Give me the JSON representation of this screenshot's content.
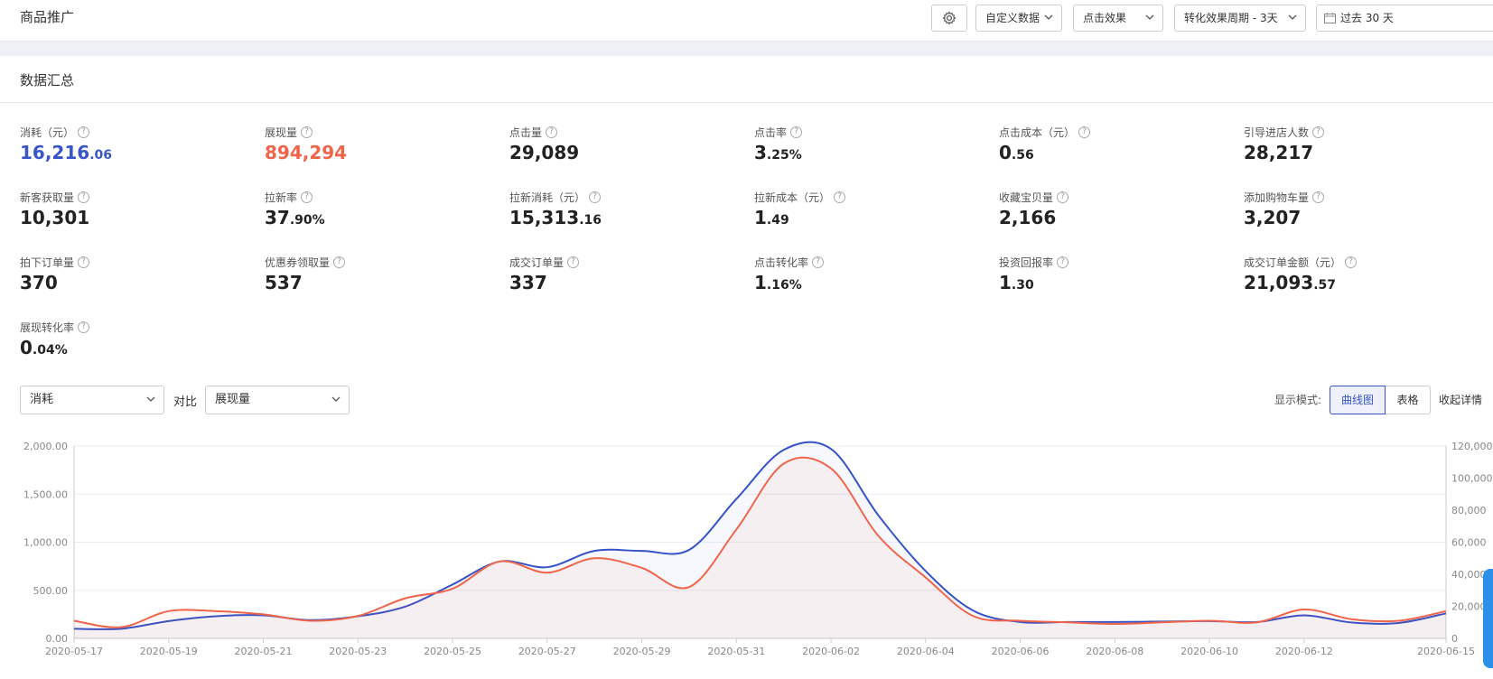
{
  "header": {
    "title": "商品推广",
    "custom_data": "自定义数据",
    "click_effect": "点击效果",
    "conversion_period": "转化效果周期 - 3天",
    "date_range": "过去 30 天"
  },
  "summary": {
    "title": "数据汇总",
    "metrics": [
      {
        "label": "消耗（元）",
        "int": "16,216",
        "dec": ".06",
        "color": "blue"
      },
      {
        "label": "展现量",
        "int": "894,294",
        "dec": "",
        "color": "red"
      },
      {
        "label": "点击量",
        "int": "29,089",
        "dec": ""
      },
      {
        "label": "点击率",
        "int": "3",
        "dec": ".25%"
      },
      {
        "label": "点击成本（元）",
        "int": "0",
        "dec": ".56"
      },
      {
        "label": "引导进店人数",
        "int": "28,217",
        "dec": ""
      },
      {
        "label": "新客获取量",
        "int": "10,301",
        "dec": ""
      },
      {
        "label": "拉新率",
        "int": "37",
        "dec": ".90%"
      },
      {
        "label": "拉新消耗（元）",
        "int": "15,313",
        "dec": ".16"
      },
      {
        "label": "拉新成本（元）",
        "int": "1",
        "dec": ".49"
      },
      {
        "label": "收藏宝贝量",
        "int": "2,166",
        "dec": ""
      },
      {
        "label": "添加购物车量",
        "int": "3,207",
        "dec": ""
      },
      {
        "label": "拍下订单量",
        "int": "370",
        "dec": ""
      },
      {
        "label": "优惠券领取量",
        "int": "537",
        "dec": ""
      },
      {
        "label": "成交订单量",
        "int": "337",
        "dec": ""
      },
      {
        "label": "点击转化率",
        "int": "1",
        "dec": ".16%"
      },
      {
        "label": "投资回报率",
        "int": "1",
        "dec": ".30"
      },
      {
        "label": "成交订单金额（元）",
        "int": "21,093",
        "dec": ".57"
      },
      {
        "label": "展现转化率",
        "int": "0",
        "dec": ".04%"
      }
    ]
  },
  "controls": {
    "primary_metric": "消耗",
    "compare_label": "对比",
    "compare_metric": "展现量",
    "mode_label": "显示模式:",
    "mode_curve": "曲线图",
    "mode_table": "表格",
    "collapse": "收起详情"
  },
  "chart_data": {
    "type": "line",
    "x": [
      "2020-05-17",
      "2020-05-18",
      "2020-05-19",
      "2020-05-20",
      "2020-05-21",
      "2020-05-22",
      "2020-05-23",
      "2020-05-24",
      "2020-05-25",
      "2020-05-26",
      "2020-05-27",
      "2020-05-28",
      "2020-05-29",
      "2020-05-30",
      "2020-05-31",
      "2020-06-01",
      "2020-06-02",
      "2020-06-03",
      "2020-06-04",
      "2020-06-05",
      "2020-06-06",
      "2020-06-07",
      "2020-06-08",
      "2020-06-09",
      "2020-06-10",
      "2020-06-11",
      "2020-06-12",
      "2020-06-13",
      "2020-06-14",
      "2020-06-15"
    ],
    "x_ticks": [
      "2020-05-17",
      "2020-05-19",
      "2020-05-21",
      "2020-05-23",
      "2020-05-25",
      "2020-05-27",
      "2020-05-29",
      "2020-05-31",
      "2020-06-02",
      "2020-06-04",
      "2020-06-06",
      "2020-06-08",
      "2020-06-10",
      "2020-06-12",
      "2020-06-15"
    ],
    "y_left_ticks": [
      "0.00",
      "500.00",
      "1,000.00",
      "1,500.00",
      "2,000.00"
    ],
    "y_left_lim": [
      0,
      2000
    ],
    "y_right_ticks": [
      "0",
      "20,000",
      "40,000",
      "60,000",
      "80,000",
      "100,000",
      "120,000"
    ],
    "y_right_lim": [
      0,
      120000
    ],
    "series": [
      {
        "axis": "left",
        "color": "#3452c8",
        "values": [
          100,
          100,
          180,
          230,
          240,
          190,
          230,
          330,
          560,
          800,
          740,
          910,
          910,
          920,
          1450,
          1960,
          1970,
          1280,
          700,
          290,
          170,
          170,
          170,
          175,
          180,
          170,
          240,
          165,
          160,
          260
        ]
      },
      {
        "axis": "right",
        "color": "#f0654a",
        "values": [
          11000,
          7000,
          17000,
          17000,
          15000,
          11000,
          14000,
          25000,
          31000,
          48000,
          41000,
          50000,
          44000,
          32000,
          68000,
          109000,
          106000,
          64000,
          38000,
          14000,
          11000,
          10000,
          9000,
          10000,
          11000,
          10000,
          18000,
          12000,
          11000,
          17000
        ]
      }
    ]
  }
}
